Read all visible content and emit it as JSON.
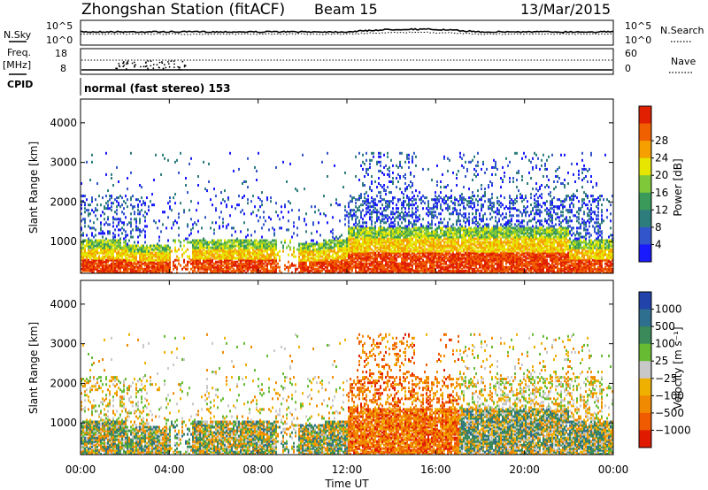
{
  "header": {
    "station": "Zhongshan Station (fitACF)",
    "beam": "Beam 15",
    "date": "13/Mar/2015"
  },
  "params_panel": {
    "nsky_label": "N.Sky",
    "nsky_ticks": [
      "10^5",
      "10^0"
    ],
    "nsearch_label": "N.Search",
    "nsearch_ticks": [
      "10^5",
      "10^0"
    ],
    "freq_label_1": "Freq.",
    "freq_label_2": "[MHz]",
    "freq_ticks": [
      "18",
      "8"
    ],
    "nave_label": "Nave",
    "nave_ticks": [
      "60",
      "0"
    ],
    "cpid_label": "CPID",
    "cpid_text": "normal (fast stereo) 153"
  },
  "chart_data": [
    {
      "type": "heatmap",
      "name": "power",
      "ylabel": "Slant Range [km]",
      "y_ticks": [
        "1000",
        "2000",
        "3000",
        "4000"
      ],
      "ylim": [
        200,
        4600
      ],
      "xlim_hours": [
        0,
        24
      ],
      "colorbar_label": "Power [dB]",
      "colorbar_ticks": [
        "4",
        "8",
        "12",
        "16",
        "20",
        "24",
        "28"
      ],
      "colorbar_colors": [
        "#1a1aff",
        "#3355cc",
        "#2e7d7d",
        "#3a9a5a",
        "#7fc83a",
        "#e6e600",
        "#f5a000",
        "#f06000",
        "#e02000"
      ]
    },
    {
      "type": "heatmap",
      "name": "velocity",
      "ylabel": "Slant Range [km]",
      "y_ticks": [
        "1000",
        "2000",
        "3000",
        "4000"
      ],
      "ylim": [
        200,
        4600
      ],
      "xlim_hours": [
        0,
        24
      ],
      "colorbar_label": "Velocity [m s⁻¹]",
      "colorbar_ticks": [
        "1000",
        "500",
        "100",
        "25",
        "−25",
        "−100",
        "−500",
        "−1000"
      ],
      "colorbar_colors": [
        "#2244aa",
        "#2e6e8e",
        "#3a8a5a",
        "#66bb33",
        "#c8c8c8",
        "#f0b000",
        "#f08a00",
        "#f05a00",
        "#e01a00"
      ],
      "xlabel": "Time UT",
      "x_ticks": [
        "00:00",
        "04:00",
        "08:00",
        "12:00",
        "16:00",
        "20:00",
        "00:00"
      ]
    }
  ]
}
